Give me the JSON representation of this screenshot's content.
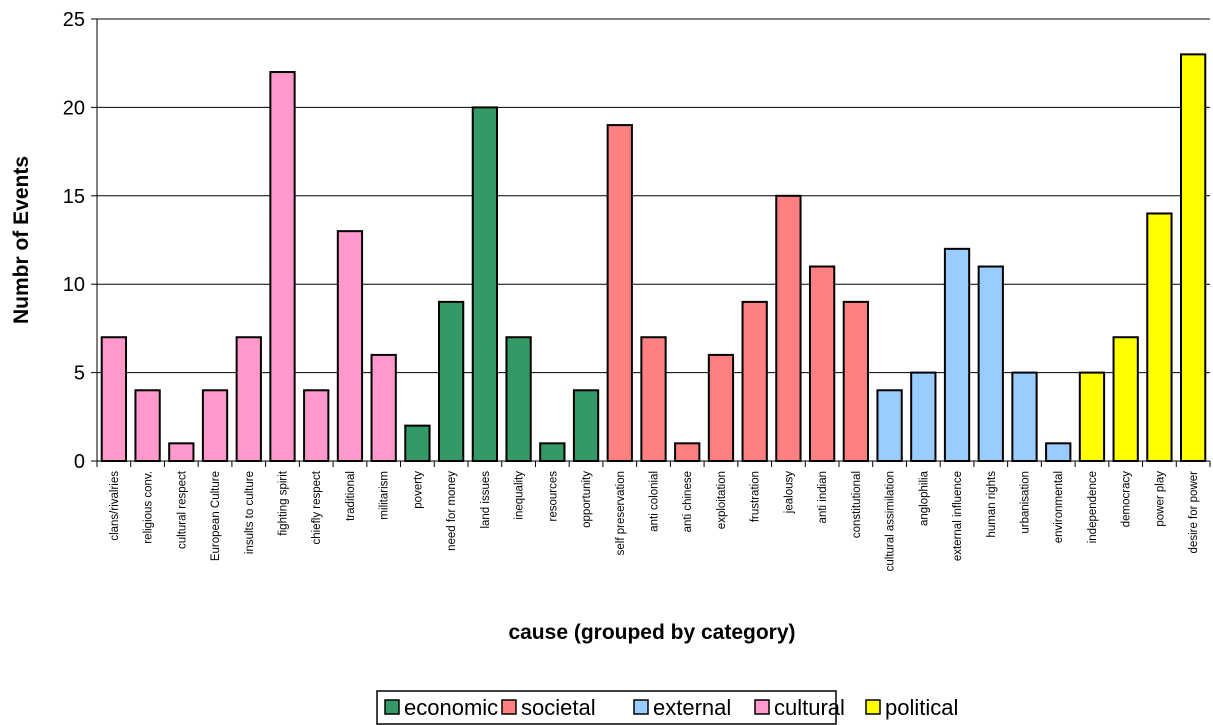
{
  "chart_data": {
    "type": "bar",
    "title": "",
    "xlabel": "cause (grouped by category)",
    "ylabel": "Numbr of Events",
    "ylim": [
      0,
      25
    ],
    "yticks": [
      0,
      5,
      10,
      15,
      20,
      25
    ],
    "grid": true,
    "legend_position": "bottom",
    "categories": [
      "clans/rivalries",
      "religious conv.",
      "cultural respect",
      "European Culture",
      "insults to culture",
      "fighting spirit",
      "chiefly respect",
      "traditional",
      "militarism",
      "poverty",
      "need for money",
      "land issues",
      "inequality",
      "resources",
      "opportunity",
      "self preservation",
      "anti colonial",
      "anti chinese",
      "exploitation",
      "frustration",
      "jealousy",
      "anti indian",
      "constitutional",
      "cultural assimilation",
      "anglophilia",
      "external influence",
      "human rights",
      "urbanisation",
      "environmental",
      "independence",
      "democracy",
      "power play",
      "desire for power"
    ],
    "values": [
      7,
      4,
      1,
      4,
      7,
      22,
      4,
      13,
      6,
      2,
      9,
      20,
      7,
      1,
      4,
      19,
      7,
      1,
      6,
      9,
      15,
      11,
      9,
      4,
      5,
      12,
      11,
      5,
      1,
      5,
      7,
      14,
      23
    ],
    "bar_groups": [
      "cultural",
      "cultural",
      "cultural",
      "cultural",
      "cultural",
      "cultural",
      "cultural",
      "cultural",
      "cultural",
      "economic",
      "economic",
      "economic",
      "economic",
      "economic",
      "economic",
      "societal",
      "societal",
      "societal",
      "societal",
      "societal",
      "societal",
      "societal",
      "societal",
      "external",
      "external",
      "external",
      "external",
      "external",
      "external",
      "political",
      "political",
      "political",
      "political"
    ],
    "legend": [
      {
        "name": "economic",
        "color": "#339966"
      },
      {
        "name": "societal",
        "color": "#FF8080"
      },
      {
        "name": "external",
        "color": "#99CCFF"
      },
      {
        "name": "cultural",
        "color": "#FF99CC"
      },
      {
        "name": "political",
        "color": "#FFFF00"
      }
    ]
  }
}
